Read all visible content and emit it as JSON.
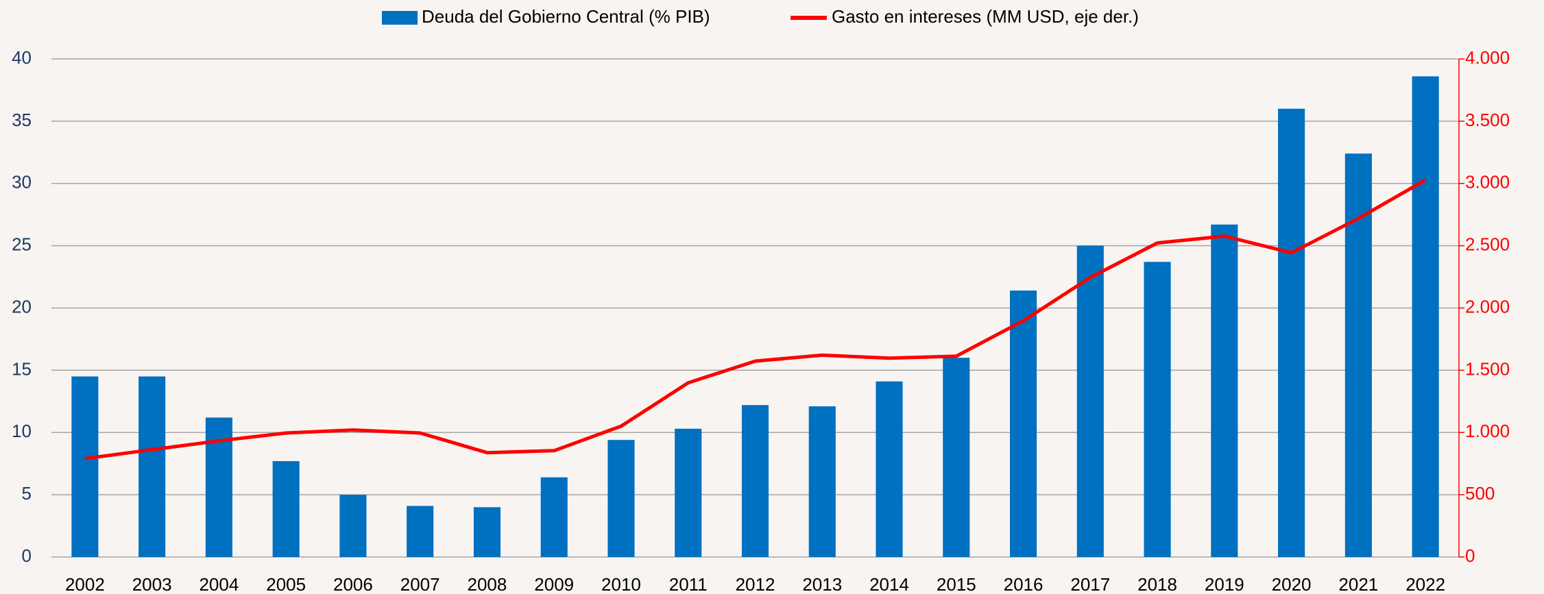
{
  "chart_data": {
    "type": "bar_line",
    "categories": [
      "2002",
      "2003",
      "2004",
      "2005",
      "2006",
      "2007",
      "2008",
      "2009",
      "2010",
      "2011",
      "2012",
      "2013",
      "2014",
      "2015",
      "2016",
      "2017",
      "2018",
      "2019",
      "2020",
      "2021",
      "2022"
    ],
    "series": [
      {
        "name": "Deuda del Gobierno Central (% PIB)",
        "type": "bar",
        "color": "#0070c0",
        "values": [
          14.5,
          14.5,
          11.2,
          7.7,
          5.0,
          4.1,
          4.0,
          6.4,
          9.4,
          10.3,
          12.2,
          12.1,
          14.1,
          16.0,
          21.4,
          25.0,
          23.7,
          26.7,
          36.0,
          32.4,
          38.6
        ]
      },
      {
        "name": "Gasto en intereses (MM USD, eje der.)",
        "type": "line",
        "axis": "y2",
        "color": "#ff0000",
        "values": [
          790,
          862,
          933,
          996,
          1020,
          996,
          838,
          854,
          1051,
          1399,
          1573,
          1621,
          1597,
          1613,
          1897,
          2245,
          2522,
          2577,
          2443,
          2719,
          3028
        ]
      }
    ],
    "ylim": [
      0,
      40
    ],
    "yticks": [
      0,
      5,
      10,
      15,
      20,
      25,
      30,
      35,
      40
    ],
    "y2lim": [
      0,
      4000
    ],
    "y2ticks": [
      0,
      500,
      {
        "value": 1000,
        "label": "1.000"
      },
      {
        "value": 1500,
        "label": "1.500"
      },
      {
        "value": 2000,
        "label": "2.000"
      },
      {
        "value": 2500,
        "label": "2.500"
      },
      {
        "value": 3000,
        "label": "3.000"
      },
      {
        "value": 3500,
        "label": "3.500"
      },
      {
        "value": 4000,
        "label": "4.000"
      }
    ],
    "grid": true,
    "legend": "top"
  }
}
